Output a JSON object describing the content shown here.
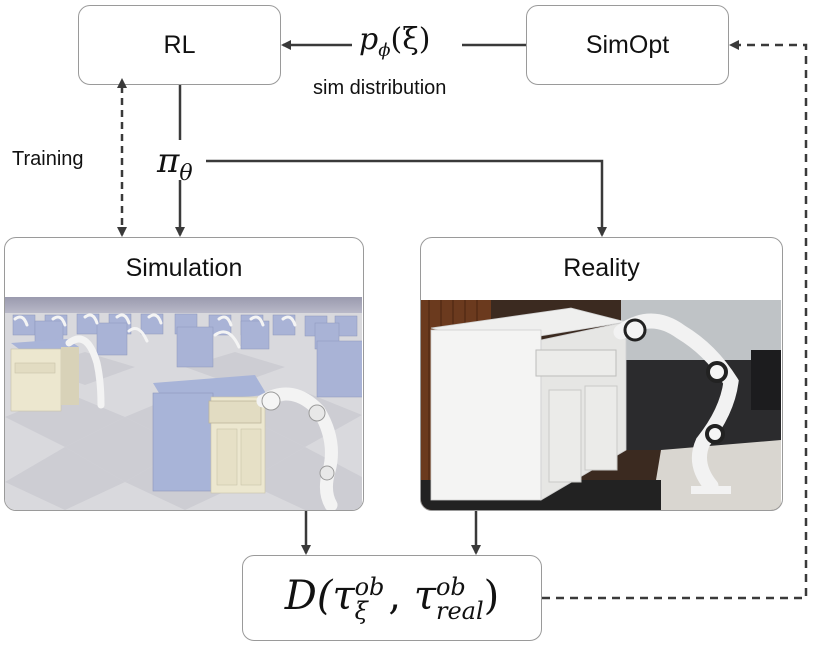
{
  "nodes": {
    "rl": "RL",
    "simopt": "SimOpt",
    "simulation": "Simulation",
    "reality": "Reality"
  },
  "labels": {
    "p_phi_main": "p",
    "p_phi_sub": "ϕ",
    "p_phi_arg": "(ξ)",
    "sim_distribution": "sim distribution",
    "training": "Training",
    "pi_main": "π",
    "pi_sub": "θ"
  },
  "discrepancy": {
    "D": "D(",
    "tau": "τ",
    "sup1": "ob",
    "sub1": "ξ",
    "comma": ",",
    "sup2": "ob",
    "sub2": "real",
    "close": ")"
  },
  "colors": {
    "box_border": "#9a9a9a",
    "arrow": "#3a3a3a",
    "sim_sky": "#9e9eb2",
    "cabinet_top": "#a8b4d8",
    "cabinet_front": "#ede8d2",
    "robot": "#f2f2f2",
    "real_wall": "#6b3a1e"
  },
  "icons": [
    "simulation-scene-image",
    "reality-photo-image"
  ]
}
